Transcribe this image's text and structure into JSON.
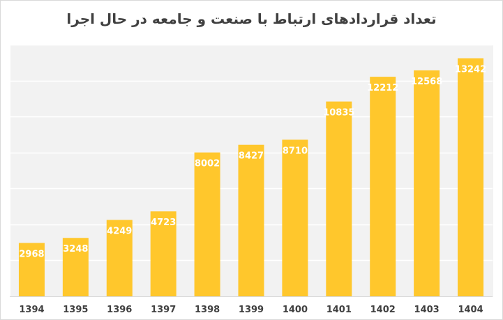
{
  "chart_data": {
    "type": "bar",
    "title": "تعداد قراردادهای ارتباط با صنعت و جامعه در حال اجرا",
    "categories": [
      "1394",
      "1395",
      "1396",
      "1397",
      "1398",
      "1399",
      "1400",
      "1401",
      "1402",
      "1403",
      "1404"
    ],
    "values": [
      2968,
      3248,
      4249,
      4723,
      8002,
      8427,
      8710,
      10835,
      12212,
      12568,
      13242
    ],
    "data_labels": [
      "2968",
      "3248",
      "4249",
      "4723",
      "8002",
      "8427",
      "8710",
      "10835",
      "12212",
      "12568",
      "13242"
    ],
    "xlabel": "",
    "ylabel": "",
    "ylim": [
      0,
      14000
    ],
    "y_tick_step": 2000,
    "y_tick_labels_visible": false,
    "grid": true,
    "legend": "none",
    "bar_color": "#ffc72c",
    "plot_background": "#f2f2f2",
    "gridline_color": "#ffffff",
    "label_color": "#ffffff",
    "axis_label_color": "#404040"
  }
}
